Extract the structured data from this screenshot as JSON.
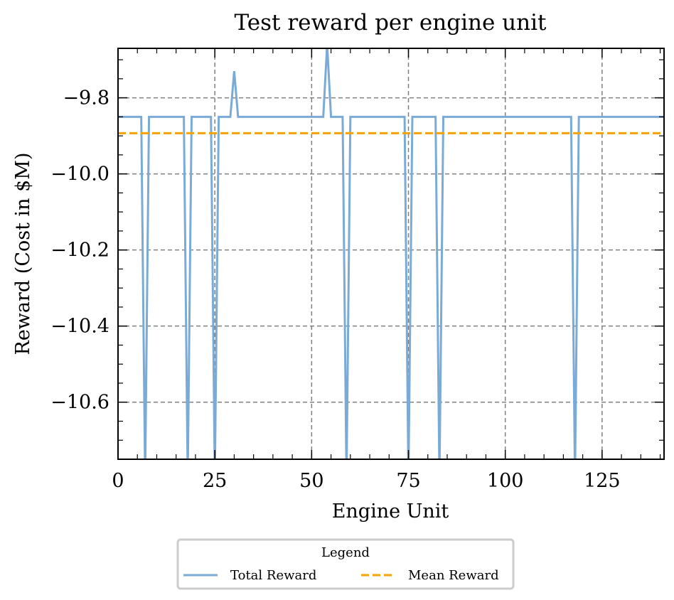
{
  "chart_data": {
    "type": "line",
    "title": "Test reward per engine unit",
    "xlabel": "Engine Unit",
    "ylabel": "Reward (Cost in $M)",
    "xlim": [
      0,
      141
    ],
    "ylim": [
      -10.75,
      -9.67
    ],
    "x_ticks": [
      0,
      25,
      50,
      75,
      100,
      125
    ],
    "y_ticks": [
      -9.8,
      -10.0,
      -10.2,
      -10.4,
      -10.6
    ],
    "x_tick_labels": [
      "0",
      "25",
      "50",
      "75",
      "100",
      "125"
    ],
    "y_tick_labels": [
      "−9.8",
      "−10.0",
      "−10.2",
      "−10.4",
      "−10.6"
    ],
    "grid": true,
    "legend": {
      "title": "Legend",
      "position": "below"
    },
    "series": [
      {
        "name": "Total Reward",
        "color": "#7aaad6",
        "style": "solid",
        "base_value": -9.85,
        "x_range": [
          0,
          141
        ],
        "deviations": [
          {
            "x": 7,
            "y": -10.8
          },
          {
            "x": 18,
            "y": -10.8
          },
          {
            "x": 25,
            "y": -10.8
          },
          {
            "x": 30,
            "y": -9.73
          },
          {
            "x": 54,
            "y": -9.66
          },
          {
            "x": 59,
            "y": -10.8
          },
          {
            "x": 75,
            "y": -10.8
          },
          {
            "x": 83,
            "y": -10.8
          },
          {
            "x": 118,
            "y": -10.8
          }
        ]
      },
      {
        "name": "Mean Reward",
        "color": "#f5a20a",
        "style": "dashed",
        "value": -9.893
      }
    ]
  }
}
